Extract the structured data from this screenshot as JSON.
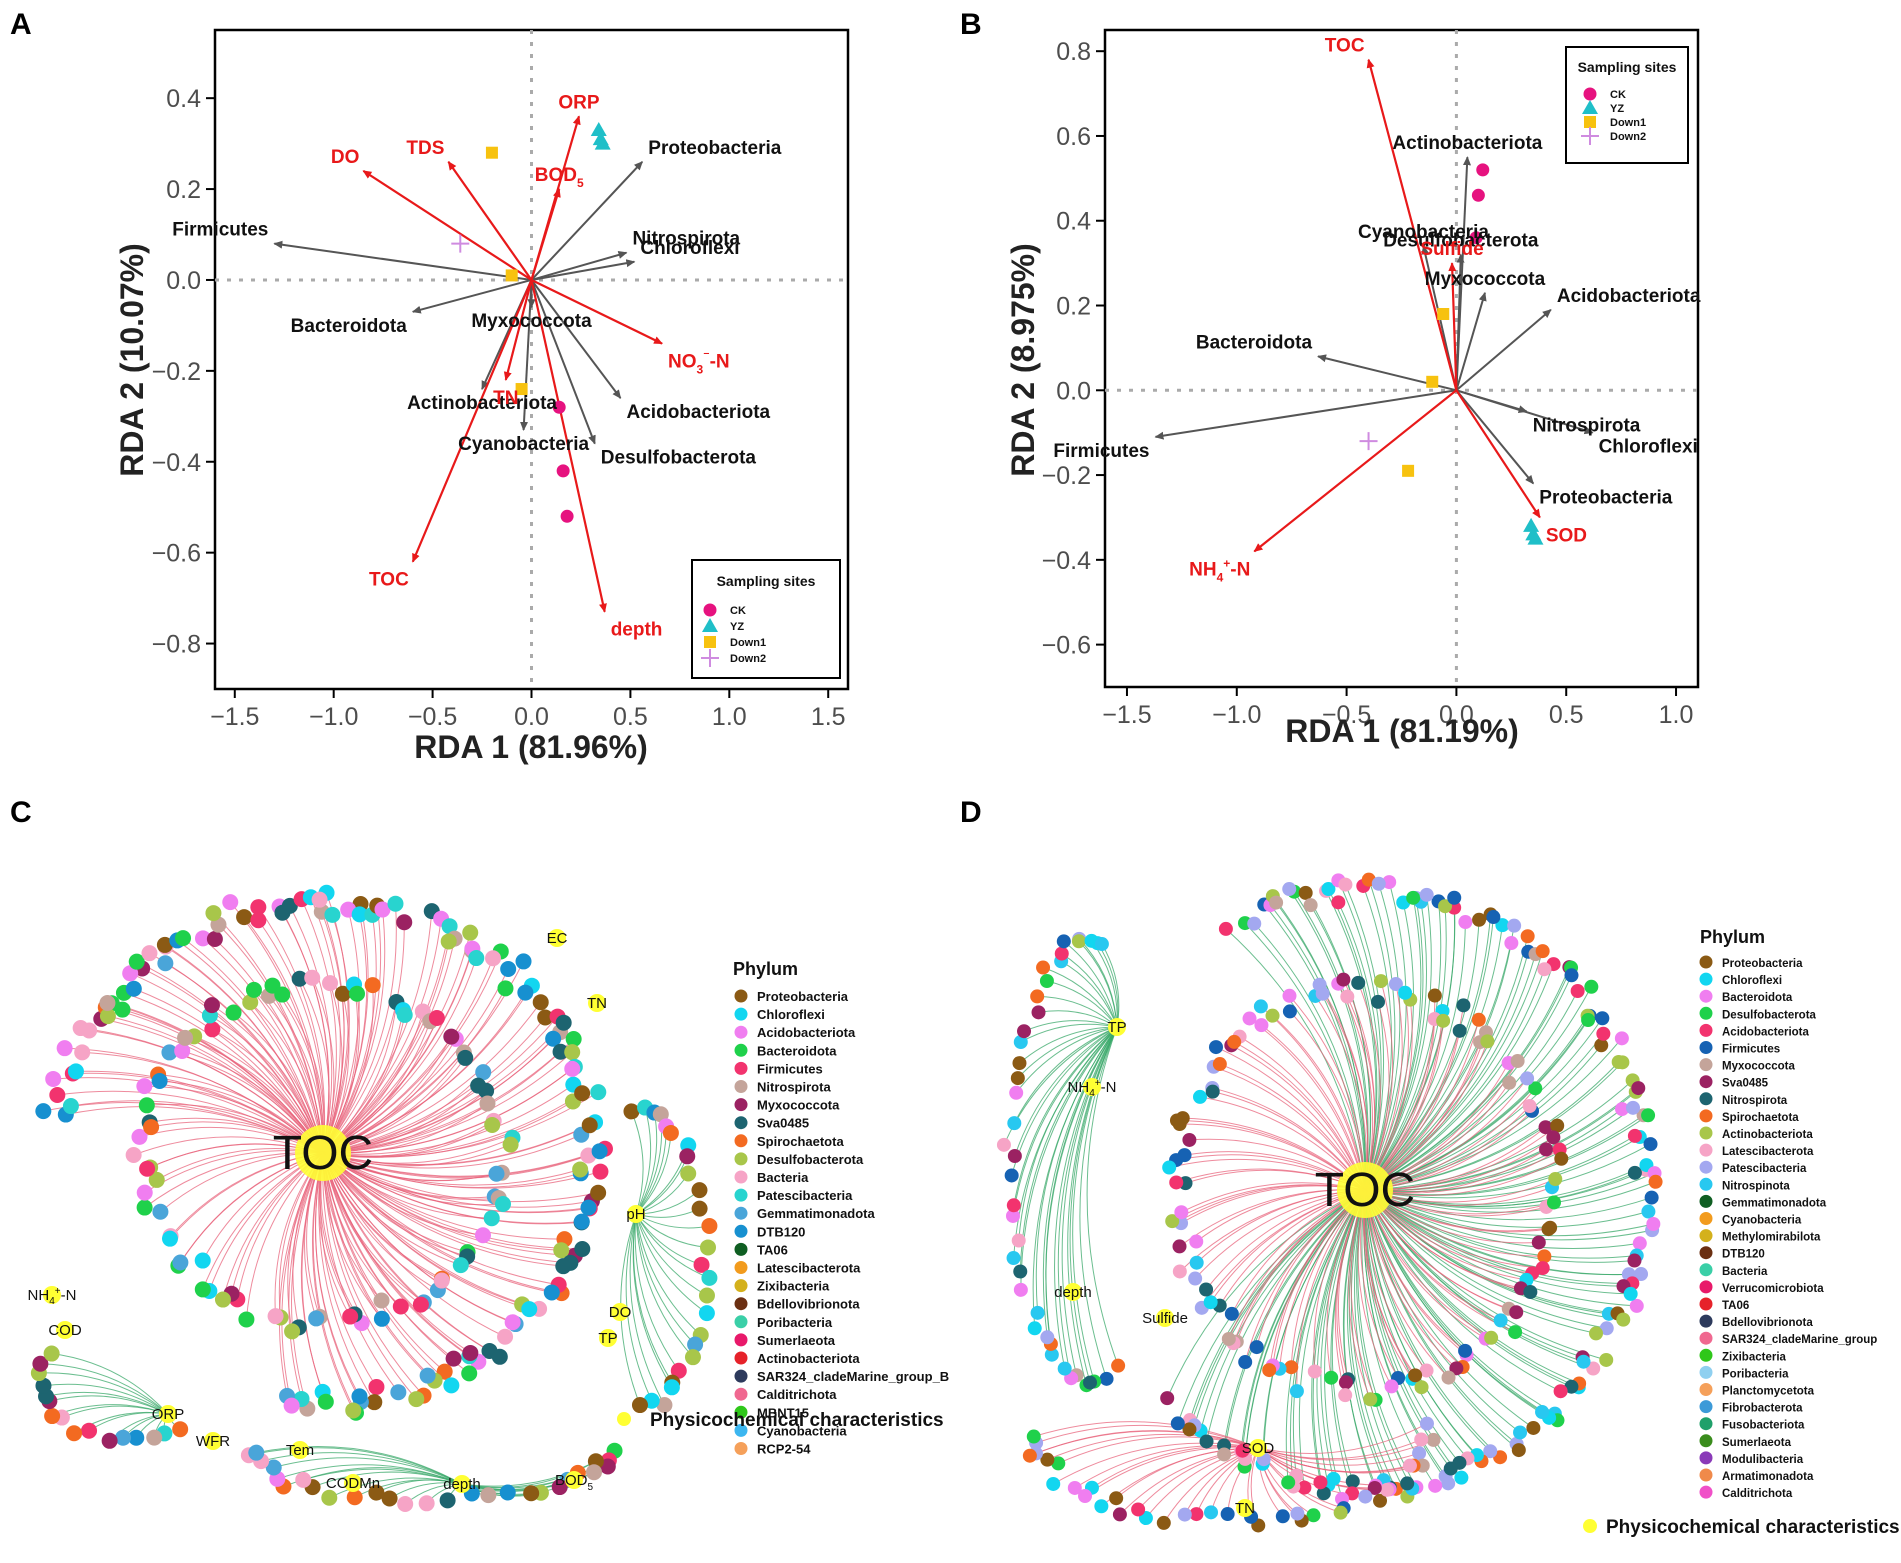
{
  "panels": [
    "A",
    "B",
    "C",
    "D"
  ],
  "chart_data": [
    {
      "type": "scatter",
      "subtype": "rda-biplot",
      "panel": "A",
      "xlabel": "RDA 1 (81.96%)",
      "ylabel": "RDA 2 (10.07%)",
      "xlim": [
        -1.6,
        1.6
      ],
      "ylim": [
        -0.9,
        0.55
      ],
      "xticks": [
        -1.5,
        -1.0,
        -0.5,
        0.0,
        0.5,
        1.0,
        1.5
      ],
      "xtick_labels": [
        "−1.5",
        "−1.0",
        "−0.5",
        "0.0",
        "0.5",
        "1.0",
        "1.5"
      ],
      "yticks": [
        0.4,
        0.2,
        0.0,
        -0.2,
        -0.4,
        -0.6,
        -0.8
      ],
      "ytick_labels": [
        "0.4",
        "0.2",
        "0.0",
        "−0.2",
        "−0.4",
        "−0.6",
        "−0.8"
      ],
      "legend": {
        "title": "Sampling sites",
        "position": "bottom-right",
        "entries": [
          {
            "name": "CK",
            "color": "#e6127f",
            "shape": "circle"
          },
          {
            "name": "YZ",
            "color": "#1fbfc8",
            "shape": "triangle"
          },
          {
            "name": "Down1",
            "color": "#f7c20f",
            "shape": "square"
          },
          {
            "name": "Down2",
            "color": "#cf8be0",
            "shape": "plus"
          }
        ]
      },
      "env_arrows": [
        {
          "label": "ORP",
          "x": 0.24,
          "y": 0.36
        },
        {
          "label": "TDS",
          "x": -0.42,
          "y": 0.26
        },
        {
          "label": "DO",
          "x": -0.85,
          "y": 0.24
        },
        {
          "label": "BOD5",
          "x": 0.14,
          "y": 0.2
        },
        {
          "label": "NO3⁻-N",
          "x": 0.66,
          "y": -0.14
        },
        {
          "label": "TN",
          "x": -0.13,
          "y": -0.22
        },
        {
          "label": "TOC",
          "x": -0.6,
          "y": -0.62
        },
        {
          "label": "depth",
          "x": 0.37,
          "y": -0.73
        }
      ],
      "species_arrows": [
        {
          "label": "Proteobacteria",
          "x": 0.56,
          "y": 0.26
        },
        {
          "label": "Firmicutes",
          "x": -1.3,
          "y": 0.08
        },
        {
          "label": "Nitrospirota",
          "x": 0.48,
          "y": 0.06
        },
        {
          "label": "Chloroflexi",
          "x": 0.52,
          "y": 0.04
        },
        {
          "label": "Bacteroidota",
          "x": -0.6,
          "y": -0.07
        },
        {
          "label": "Myxococcota",
          "x": 0.0,
          "y": -0.06
        },
        {
          "label": "Actinobacteriota",
          "x": -0.25,
          "y": -0.24
        },
        {
          "label": "Cyanobacteria",
          "x": -0.04,
          "y": -0.33
        },
        {
          "label": "Acidobacteriota",
          "x": 0.45,
          "y": -0.26
        },
        {
          "label": "Desulfobacterota",
          "x": 0.32,
          "y": -0.36
        }
      ],
      "samples": [
        {
          "site": "YZ",
          "x": 0.34,
          "y": 0.33
        },
        {
          "site": "YZ",
          "x": 0.35,
          "y": 0.31
        },
        {
          "site": "YZ",
          "x": 0.36,
          "y": 0.3
        },
        {
          "site": "Down1",
          "x": -0.2,
          "y": 0.28
        },
        {
          "site": "Down1",
          "x": -0.1,
          "y": 0.01
        },
        {
          "site": "Down1",
          "x": -0.05,
          "y": -0.24
        },
        {
          "site": "Down2",
          "x": -0.36,
          "y": 0.08
        },
        {
          "site": "CK",
          "x": 0.14,
          "y": -0.28
        },
        {
          "site": "CK",
          "x": 0.16,
          "y": -0.42
        },
        {
          "site": "CK",
          "x": 0.18,
          "y": -0.52
        }
      ]
    },
    {
      "type": "scatter",
      "subtype": "rda-biplot",
      "panel": "B",
      "xlabel": "RDA 1 (81.19%)",
      "ylabel": "RDA 2 (8.975%)",
      "xlim": [
        -1.6,
        1.1
      ],
      "ylim": [
        -0.7,
        0.85
      ],
      "xticks": [
        -1.5,
        -1.0,
        -0.5,
        0.0,
        0.5,
        1.0
      ],
      "xtick_labels": [
        "−1.5",
        "−1.0",
        "−0.5",
        "0.0",
        "0.5",
        "1.0"
      ],
      "yticks": [
        0.8,
        0.6,
        0.4,
        0.2,
        0.0,
        -0.2,
        -0.4,
        -0.6
      ],
      "ytick_labels": [
        "0.8",
        "0.6",
        "0.4",
        "0.2",
        "0.0",
        "−0.2",
        "−0.4",
        "−0.6"
      ],
      "legend": {
        "title": "Sampling sites",
        "position": "top-right",
        "entries": [
          {
            "name": "CK",
            "color": "#e6127f",
            "shape": "circle"
          },
          {
            "name": "YZ",
            "color": "#1fbfc8",
            "shape": "triangle"
          },
          {
            "name": "Down1",
            "color": "#f7c20f",
            "shape": "square"
          },
          {
            "name": "Down2",
            "color": "#cf8be0",
            "shape": "plus"
          }
        ]
      },
      "env_arrows": [
        {
          "label": "TOC",
          "x": -0.4,
          "y": 0.78
        },
        {
          "label": "Sulfide",
          "x": -0.02,
          "y": 0.3
        },
        {
          "label": "NH4⁺-N",
          "x": -0.92,
          "y": -0.38
        },
        {
          "label": "SOD",
          "x": 0.38,
          "y": -0.3
        }
      ],
      "species_arrows": [
        {
          "label": "Actinobacteriota",
          "x": 0.05,
          "y": 0.55
        },
        {
          "label": "Cyanobacteria",
          "x": -0.15,
          "y": 0.34
        },
        {
          "label": "Desulfobacterota",
          "x": 0.02,
          "y": 0.32
        },
        {
          "label": "Myxococcota",
          "x": 0.13,
          "y": 0.23
        },
        {
          "label": "Acidobacteriota",
          "x": 0.43,
          "y": 0.19
        },
        {
          "label": "Bacteroidota",
          "x": -0.63,
          "y": 0.08
        },
        {
          "label": "Nitrospirota",
          "x": 0.32,
          "y": -0.05
        },
        {
          "label": "Chloroflexi",
          "x": 0.62,
          "y": -0.1
        },
        {
          "label": "Firmicutes",
          "x": -1.37,
          "y": -0.11
        },
        {
          "label": "Proteobacteria",
          "x": 0.35,
          "y": -0.22
        }
      ],
      "samples": [
        {
          "site": "CK",
          "x": 0.12,
          "y": 0.52
        },
        {
          "site": "CK",
          "x": 0.1,
          "y": 0.46
        },
        {
          "site": "CK",
          "x": 0.09,
          "y": 0.36
        },
        {
          "site": "Down1",
          "x": -0.06,
          "y": 0.18
        },
        {
          "site": "Down1",
          "x": -0.11,
          "y": 0.02
        },
        {
          "site": "Down1",
          "x": -0.22,
          "y": -0.19
        },
        {
          "site": "Down2",
          "x": -0.4,
          "y": -0.12
        },
        {
          "site": "YZ",
          "x": 0.34,
          "y": -0.32
        },
        {
          "site": "YZ",
          "x": 0.35,
          "y": -0.34
        },
        {
          "site": "YZ",
          "x": 0.36,
          "y": -0.35
        }
      ]
    }
  ],
  "network_c": {
    "hubs": [
      "TOC",
      "EC",
      "TN",
      "pH",
      "DO",
      "TP",
      "NH4⁺-N",
      "COD",
      "ORP",
      "WFR",
      "Tem",
      "CODMn",
      "depth",
      "BOD5"
    ],
    "legend_title": "Phylum",
    "phyla": [
      {
        "name": "Proteobacteria",
        "color": "#8b5a14"
      },
      {
        "name": "Chloroflexi",
        "color": "#12d6f0"
      },
      {
        "name": "Acidobacteriota",
        "color": "#f07ef0"
      },
      {
        "name": "Bacteroidota",
        "color": "#1fd14b"
      },
      {
        "name": "Firmicutes",
        "color": "#f2336e"
      },
      {
        "name": "Nitrospirota",
        "color": "#c4a49a"
      },
      {
        "name": "Myxococcota",
        "color": "#9b2262"
      },
      {
        "name": "Sva0485",
        "color": "#1d6470"
      },
      {
        "name": "Spirochaetota",
        "color": "#f36a21"
      },
      {
        "name": "Desulfobacterota",
        "color": "#a8c64a"
      },
      {
        "name": "Bacteria",
        "color": "#f6a4c6"
      },
      {
        "name": "Patescibacteria",
        "color": "#28d4cf"
      },
      {
        "name": "Gemmatimonadota",
        "color": "#4aa5d9"
      },
      {
        "name": "DTB120",
        "color": "#1790d0"
      },
      {
        "name": "TA06",
        "color": "#0f5e22"
      },
      {
        "name": "Latescibacterota",
        "color": "#f29b1d"
      },
      {
        "name": "Zixibacteria",
        "color": "#d4b11c"
      },
      {
        "name": "Bdellovibrionota",
        "color": "#6b2f12"
      },
      {
        "name": "Poribacteria",
        "color": "#3acfa7"
      },
      {
        "name": "Sumerlaeota",
        "color": "#e8196a"
      },
      {
        "name": "Actinobacteriota",
        "color": "#e6222a"
      },
      {
        "name": "SAR324_cladeMarine_group_B",
        "color": "#2d3a5c"
      },
      {
        "name": "Calditrichota",
        "color": "#f06890"
      },
      {
        "name": "MBNT15",
        "color": "#2fc71a"
      },
      {
        "name": "Cyanobacteria",
        "color": "#3cb6f0"
      },
      {
        "name": "RCP2-54",
        "color": "#f5a05a"
      }
    ],
    "physico_label": "Physicochemical characteristics",
    "physico_color": "#ffff33"
  },
  "network_d": {
    "hubs": [
      "TOC",
      "TP",
      "NH4⁺-N",
      "depth",
      "Sulfide",
      "SOD",
      "TN"
    ],
    "legend_title": "Phylum",
    "phyla": [
      {
        "name": "Proteobacteria",
        "color": "#8b5a14"
      },
      {
        "name": "Chloroflexi",
        "color": "#12d6f0"
      },
      {
        "name": "Bacteroidota",
        "color": "#f07ef0"
      },
      {
        "name": "Desulfobacterota",
        "color": "#1fd14b"
      },
      {
        "name": "Acidobacteriota",
        "color": "#f2336e"
      },
      {
        "name": "Firmicutes",
        "color": "#1662b3"
      },
      {
        "name": "Myxococcota",
        "color": "#c4a49a"
      },
      {
        "name": "Sva0485",
        "color": "#9b2262"
      },
      {
        "name": "Nitrospirota",
        "color": "#1d6470"
      },
      {
        "name": "Spirochaetota",
        "color": "#f36a21"
      },
      {
        "name": "Actinobacteriota",
        "color": "#a8c64a"
      },
      {
        "name": "Latescibacterota",
        "color": "#f6a4c6"
      },
      {
        "name": "Patescibacteria",
        "color": "#a3a8f0"
      },
      {
        "name": "Nitrospinota",
        "color": "#28c8f0"
      },
      {
        "name": "Gemmatimonadota",
        "color": "#0f5e22"
      },
      {
        "name": "Cyanobacteria",
        "color": "#f29b1d"
      },
      {
        "name": "Methylomirabilota",
        "color": "#d4b11c"
      },
      {
        "name": "DTB120",
        "color": "#6b2f12"
      },
      {
        "name": "Bacteria",
        "color": "#3acfa7"
      },
      {
        "name": "Verrucomicrobiota",
        "color": "#e8196a"
      },
      {
        "name": "TA06",
        "color": "#e6222a"
      },
      {
        "name": "Bdellovibrionota",
        "color": "#2d3a5c"
      },
      {
        "name": "SAR324_cladeMarine_group",
        "color": "#f06890"
      },
      {
        "name": "Zixibacteria",
        "color": "#2fc71a"
      },
      {
        "name": "Poribacteria",
        "color": "#8fd0f0"
      },
      {
        "name": "Planctomycetota",
        "color": "#f5a05a"
      },
      {
        "name": "Fibrobacterota",
        "color": "#3c9ad8"
      },
      {
        "name": "Fusobacteriota",
        "color": "#1fa06a"
      },
      {
        "name": "Sumerlaeota",
        "color": "#3a8c1c"
      },
      {
        "name": "Modulibacteria",
        "color": "#8a3ab8"
      },
      {
        "name": "Armatimonadota",
        "color": "#f08a4a"
      },
      {
        "name": "Calditrichota",
        "color": "#f050c8"
      }
    ],
    "physico_label": "Physicochemical characteristics",
    "physico_color": "#ffff33"
  }
}
